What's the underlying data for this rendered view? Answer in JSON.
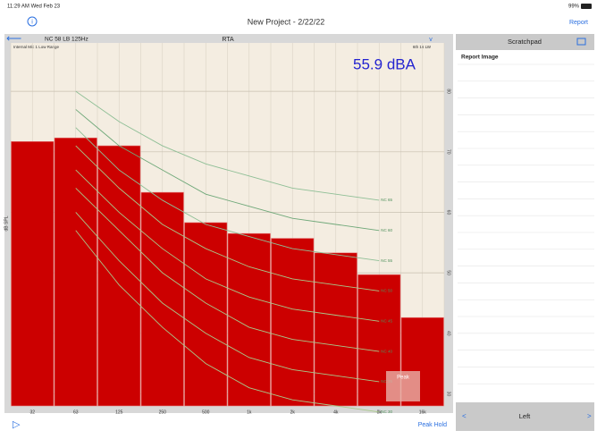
{
  "status_bar": {
    "time": "11:29 AM  Wed Feb 23",
    "battery": "99%"
  },
  "nav_bar": {
    "title": "New Project  - 2/22/22",
    "report": "Report"
  },
  "panel_header": {
    "measurement": "NC  58 LB 125Hz",
    "mode": "RTA",
    "source": "Internal Mic 1 Low Range",
    "resolution": "6th 16 LW"
  },
  "chart_data": {
    "type": "bar",
    "ylabel": "dB SPL",
    "level": "55.9 dBA",
    "categories": [
      "32",
      "63",
      "125",
      "250",
      "500",
      "1k",
      "2k",
      "4k",
      "8k",
      "16k"
    ],
    "values": [
      71.7,
      72.3,
      71.0,
      63.3,
      58.3,
      56.5,
      55.7,
      53.3,
      49.7,
      42.6
    ],
    "color": "#cc0000",
    "ylim": [
      28,
      88
    ],
    "yticks": [
      30,
      40,
      50,
      60,
      70,
      80
    ],
    "grid": true,
    "curves": [
      {
        "name": "NC 65",
        "color": "#8fbf96",
        "values": [
          null,
          80,
          75,
          71,
          68,
          66,
          64,
          63,
          62,
          null
        ]
      },
      {
        "name": "NC 60",
        "color": "#6fa879",
        "values": [
          null,
          77,
          71,
          67,
          63,
          61,
          59,
          58,
          57,
          null
        ]
      },
      {
        "name": "NC 55",
        "color": "#8fbf96",
        "values": [
          null,
          74,
          67,
          62,
          58,
          56,
          54,
          53,
          52,
          null
        ]
      },
      {
        "name": "NC 50",
        "color": "#a8c98a",
        "values": [
          null,
          71,
          64,
          58,
          54,
          51,
          49,
          48,
          47,
          null
        ]
      },
      {
        "name": "NC 45",
        "color": "#a8c98a",
        "values": [
          null,
          67,
          60,
          54,
          49,
          46,
          44,
          43,
          42,
          null
        ]
      },
      {
        "name": "NC 40",
        "color": "#a8c98a",
        "values": [
          null,
          64,
          57,
          50,
          45,
          41,
          39,
          38,
          37,
          null
        ]
      },
      {
        "name": "NC 35",
        "color": "#a8c98a",
        "values": [
          null,
          60,
          52,
          45,
          40,
          36,
          34,
          33,
          32,
          null
        ]
      },
      {
        "name": "NC 30",
        "color": "#a8c98a",
        "values": [
          null,
          57,
          48,
          41,
          35,
          31,
          29,
          28,
          27,
          null
        ]
      }
    ]
  },
  "peak_button": "Peak",
  "toolbar": {
    "peak_hold": "Peak Hold"
  },
  "scratchpad": {
    "title": "Scratchpad",
    "item": "Report Image",
    "channel": "Left"
  }
}
